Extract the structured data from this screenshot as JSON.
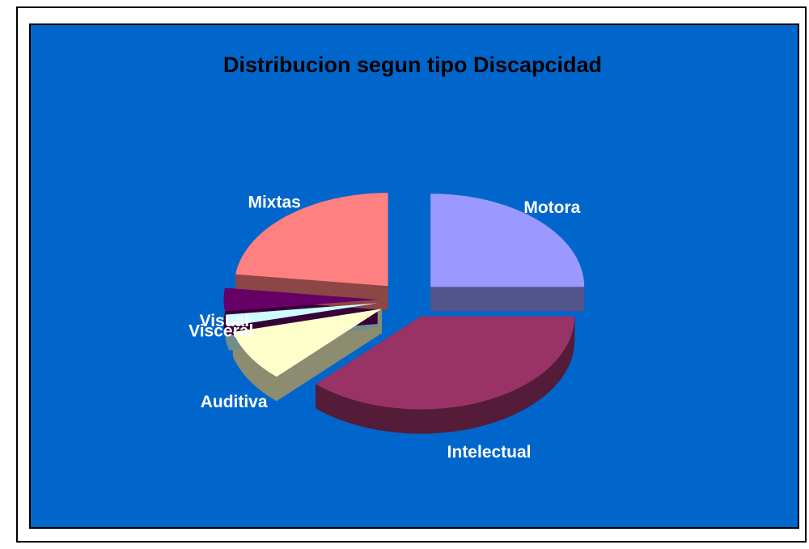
{
  "chart_data": {
    "type": "pie3d",
    "title": "Distribucion segun tipo Discapcidad",
    "categories": [
      "Motora",
      "Intelectual",
      "Auditiva",
      "Visual",
      "Visceral",
      "Mixtas"
    ],
    "values": [
      25,
      37,
      9,
      2,
      4,
      23
    ],
    "colors": [
      "#9999ff",
      "#993366",
      "#ffffcc",
      "#ccffff",
      "#660066",
      "#ff8080"
    ]
  }
}
